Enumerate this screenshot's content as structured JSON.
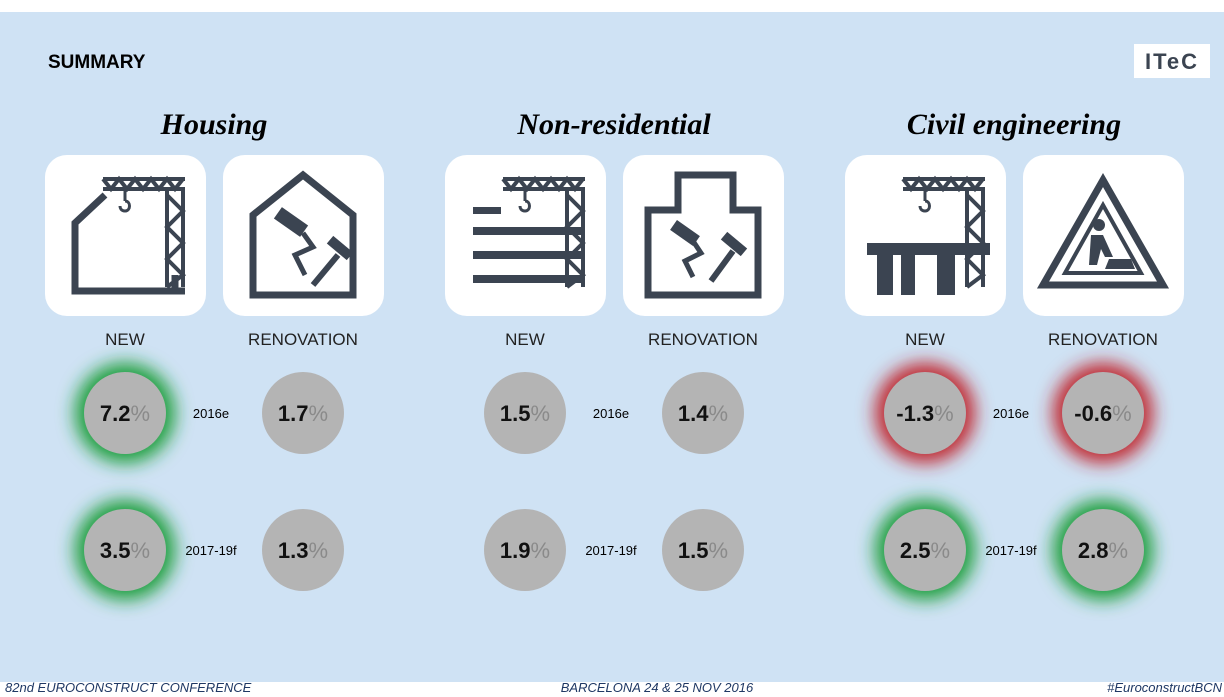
{
  "title": "SUMMARY",
  "logo": "ITeC",
  "sections": [
    {
      "title": "Housing",
      "items": [
        "NEW",
        "RENOVATION"
      ],
      "periods": [
        "2016e",
        "2017-19f"
      ],
      "rows": [
        [
          {
            "value": 7.2,
            "unit": "%",
            "glow": "#1f9e3a"
          },
          {
            "value": 1.7,
            "unit": "%",
            "glow": null
          }
        ],
        [
          {
            "value": 3.5,
            "unit": "%",
            "glow": "#1f9e3a"
          },
          {
            "value": 1.3,
            "unit": "%",
            "glow": null
          }
        ]
      ]
    },
    {
      "title": "Non-residential",
      "items": [
        "NEW",
        "RENOVATION"
      ],
      "periods": [
        "2016e",
        "2017-19f"
      ],
      "rows": [
        [
          {
            "value": 1.5,
            "unit": "%",
            "glow": null
          },
          {
            "value": 1.4,
            "unit": "%",
            "glow": null
          }
        ],
        [
          {
            "value": 1.9,
            "unit": "%",
            "glow": null
          },
          {
            "value": 1.5,
            "unit": "%",
            "glow": null
          }
        ]
      ]
    },
    {
      "title": "Civil engineering",
      "items": [
        "NEW",
        "RENOVATION"
      ],
      "periods": [
        "2016e",
        "2017-19f"
      ],
      "rows": [
        [
          {
            "value": -1.3,
            "unit": "%",
            "glow": "#c0272d"
          },
          {
            "value": -0.6,
            "unit": "%",
            "glow": "#c0272d"
          }
        ],
        [
          {
            "value": 2.5,
            "unit": "%",
            "glow": "#1f9e3a"
          },
          {
            "value": 2.8,
            "unit": "%",
            "glow": "#1f9e3a"
          }
        ]
      ]
    }
  ],
  "footer": {
    "left": "82nd EUROCONSTRUCT CONFERENCE",
    "center": "BARCELONA 24 & 25 NOV 2016",
    "right": "#EuroconstructBCN"
  }
}
